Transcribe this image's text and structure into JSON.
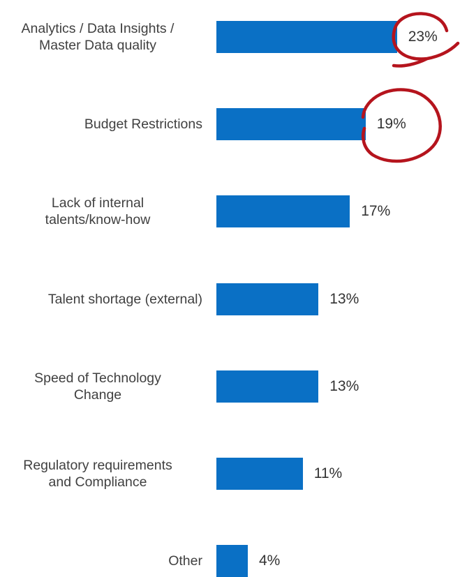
{
  "chart_data": {
    "type": "bar",
    "orientation": "horizontal",
    "categories": [
      "Analytics / Data Insights /\nMaster Data quality",
      "Budget Restrictions",
      "Lack of internal\ntalents/know-how",
      "Talent shortage (external)",
      "Speed of Technology\nChange",
      "Regulatory requirements\nand Compliance",
      "Other"
    ],
    "values": [
      23,
      19,
      17,
      13,
      13,
      11,
      4
    ],
    "value_labels": [
      "23%",
      "19%",
      "17%",
      "13%",
      "13%",
      "11%",
      "4%"
    ],
    "color": "#0a70c5"
  }
}
